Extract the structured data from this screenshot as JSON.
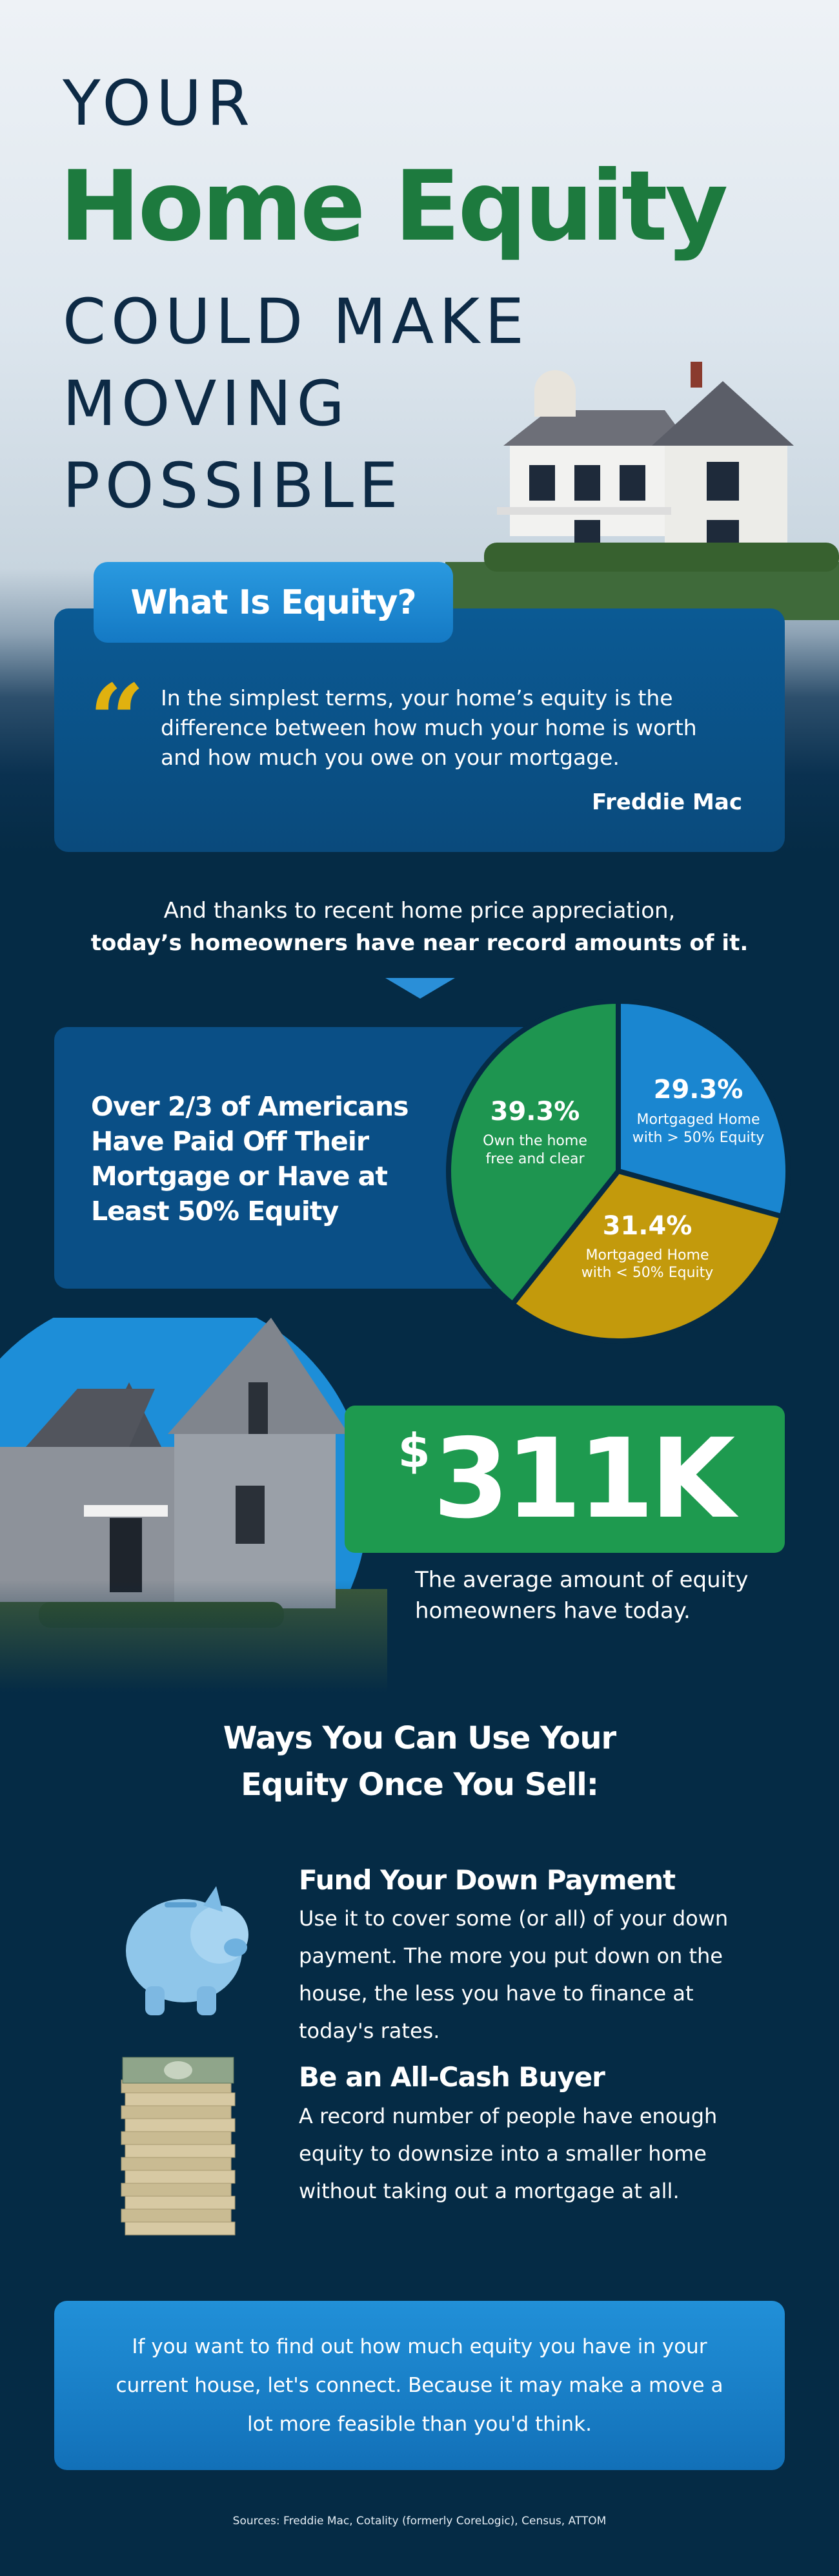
{
  "header": {
    "line1": "YOUR",
    "highlight": "Home Equity",
    "line2": "COULD MAKE",
    "line3": "MOVING",
    "line4": "POSSIBLE"
  },
  "definition": {
    "title": "What Is Equity?",
    "quote": "In the simplest terms, your home’s equity is the difference between how much your home is worth and how much you owe on your mortgage.",
    "source": "Freddie Mac"
  },
  "intro": {
    "line1": "And thanks to recent home price appreciation,",
    "line2": "today’s homeowners have near record amounts of it."
  },
  "pie_section": {
    "headline": "Over 2/3 of Americans Have Paid Off Their Mortgage or Have at Least 50% Equity"
  },
  "chart_data": {
    "type": "pie",
    "slices": [
      {
        "label_value": "29.3%",
        "value": 29.3,
        "label": "Mortgaged Home with > 50% Equity",
        "color": "#1a86d0"
      },
      {
        "label_value": "31.4%",
        "value": 31.4,
        "label": "Mortgaged Home with < 50% Equity",
        "color": "#c39a0c"
      },
      {
        "label_value": "39.3%",
        "value": 39.3,
        "label": "Own the home free and clear",
        "color": "#1e9550"
      }
    ]
  },
  "stat": {
    "currency": "$",
    "value": "311K",
    "caption": "The average amount of equity homeowners have today."
  },
  "ways": {
    "title_line1": "Ways You Can Use Your",
    "title_line2": "Equity Once You Sell:",
    "items": [
      {
        "icon": "piggy-bank-icon",
        "title": "Fund Your Down Payment",
        "body": "Use it to cover some (or all) of your down payment. The more you put down on the house, the less you have to finance at today's rates."
      },
      {
        "icon": "cash-stack-icon",
        "title": "Be an All-Cash Buyer",
        "body": "A record number of people have enough equity to downsize into a smaller home without taking out a mortgage at all."
      }
    ]
  },
  "cta": {
    "text": "If you want to find out how much equity you have in your current house, let's connect. Because it may make a move a lot more feasible than you'd think."
  },
  "sources": "Sources: Freddie Mac, Cotality (formerly CoreLogic), Census, ATTOM",
  "colors": {
    "navy": "#052b45",
    "green": "#1d7a3e",
    "blue": "#1a86d0",
    "gold": "#c39a0c"
  }
}
